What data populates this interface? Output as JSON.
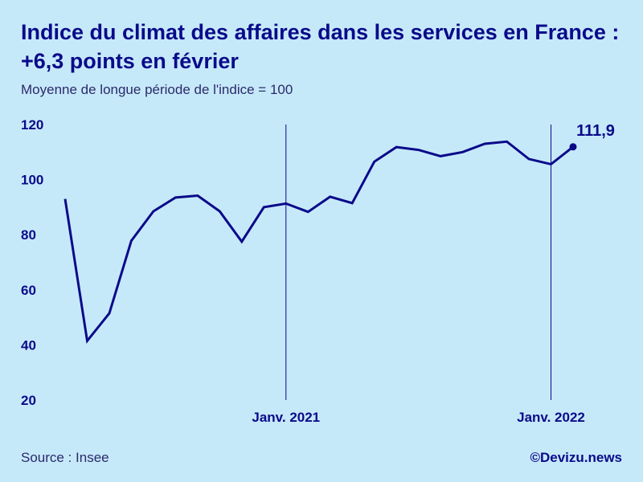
{
  "header": {
    "title": "Indice du climat des affaires dans les services en France : +6,3 points en février",
    "subtitle": "Moyenne de longue période de l'indice = 100"
  },
  "footer": {
    "source": "Source : Insee",
    "credit": "©Devizu.news"
  },
  "colors": {
    "background": "#c6e9f9",
    "line": "#0a0a8a",
    "text": "#0a0a8a"
  },
  "chart_data": {
    "type": "line",
    "title": "Indice du climat des affaires dans les services en France : +6,3 points en février",
    "subtitle": "Moyenne de longue période de l'indice = 100",
    "ylim": [
      20,
      120
    ],
    "y_ticks": [
      120,
      100,
      80,
      60,
      40,
      20
    ],
    "y_tick_labels": [
      "120",
      "100",
      "80",
      "60",
      "40",
      "20"
    ],
    "x": [
      "2020-03",
      "2020-04",
      "2020-05",
      "2020-06",
      "2020-07",
      "2020-08",
      "2020-09",
      "2020-10",
      "2020-11",
      "2020-12",
      "2021-01",
      "2021-02",
      "2021-03",
      "2021-04",
      "2021-05",
      "2021-06",
      "2021-07",
      "2021-08",
      "2021-09",
      "2021-10",
      "2021-11",
      "2021-12",
      "2022-01",
      "2022-02"
    ],
    "series": [
      {
        "values": [
          93,
          41.5,
          51.5,
          77.8,
          88.5,
          93.5,
          94.2,
          88.5,
          77.5,
          90,
          91.3,
          88.3,
          93.8,
          91.5,
          106.5,
          111.8,
          110.8,
          108.5,
          110,
          113,
          113.8,
          107.5,
          105.6,
          111.9
        ]
      }
    ],
    "reference_lines": [
      {
        "x": "2021-01",
        "label": "Janv. 2021"
      },
      {
        "x": "2022-01",
        "label": "Janv. 2022"
      }
    ],
    "last_point_label": "111,9",
    "grid": false,
    "legend": "none"
  }
}
